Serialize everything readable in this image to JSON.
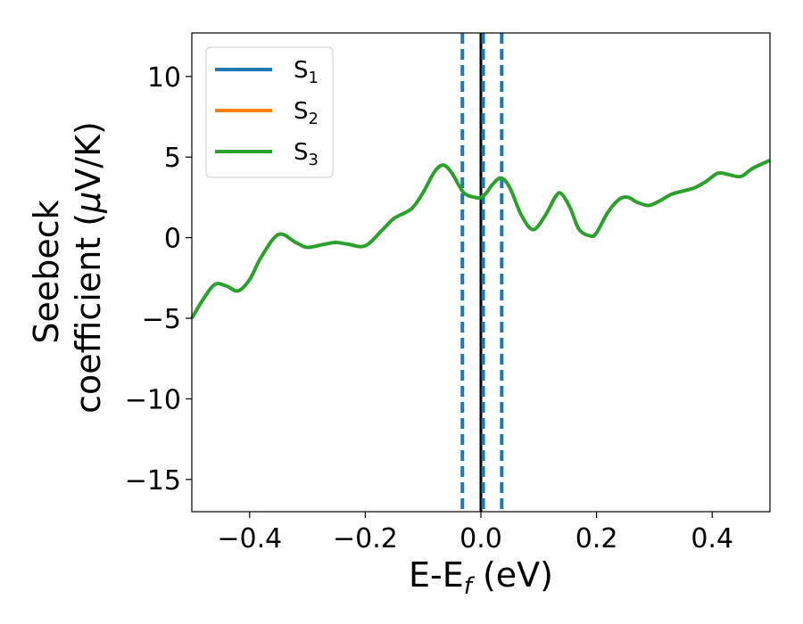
{
  "chart_data": {
    "type": "line",
    "xlabel": "E-E",
    "xlabel_sub": "f",
    "xlabel_unit": " (eV)",
    "ylabel_line1": "Seebeck",
    "ylabel_line2_pre": "coefficient  (",
    "ylabel_mu": "μ",
    "ylabel_line2_post": "V/K)",
    "xlim": [
      -0.5,
      0.5
    ],
    "ylim": [
      -17,
      12.7
    ],
    "xticks": [
      -0.4,
      -0.2,
      0.0,
      0.2,
      0.4
    ],
    "xtick_labels": [
      "−0.4",
      "−0.2",
      "0.0",
      "0.2",
      "0.4"
    ],
    "yticks": [
      10,
      5,
      0,
      -5,
      -10,
      -15
    ],
    "ytick_labels": [
      "10",
      "5",
      "0",
      "−5",
      "−10",
      "−15"
    ],
    "grid": false,
    "legend_position": "top-left",
    "series": [
      {
        "name": "S",
        "sub": "1",
        "color": "#1f77b4",
        "x": [],
        "y": []
      },
      {
        "name": "S",
        "sub": "2",
        "color": "#ff7f0e",
        "x": [],
        "y": []
      },
      {
        "name": "S",
        "sub": "3",
        "color": "#2ca02c",
        "x": [
          -0.5,
          -0.48,
          -0.46,
          -0.44,
          -0.42,
          -0.4,
          -0.38,
          -0.35,
          -0.32,
          -0.3,
          -0.27,
          -0.25,
          -0.23,
          -0.2,
          -0.17,
          -0.15,
          -0.12,
          -0.1,
          -0.08,
          -0.065,
          -0.05,
          -0.03,
          -0.01,
          0.0,
          0.01,
          0.02,
          0.035,
          0.05,
          0.07,
          0.09,
          0.11,
          0.13,
          0.14,
          0.155,
          0.17,
          0.19,
          0.2,
          0.22,
          0.24,
          0.255,
          0.27,
          0.29,
          0.31,
          0.33,
          0.35,
          0.37,
          0.39,
          0.41,
          0.43,
          0.45,
          0.47,
          0.5
        ],
        "y": [
          -5.0,
          -3.8,
          -2.9,
          -3.0,
          -3.3,
          -2.6,
          -1.2,
          0.2,
          -0.3,
          -0.6,
          -0.4,
          -0.3,
          -0.4,
          -0.5,
          0.5,
          1.2,
          1.8,
          2.8,
          4.1,
          4.5,
          4.0,
          2.8,
          2.5,
          2.5,
          2.8,
          3.3,
          3.7,
          3.1,
          1.4,
          0.5,
          1.3,
          2.6,
          2.7,
          1.8,
          0.5,
          0.1,
          0.3,
          1.6,
          2.4,
          2.5,
          2.2,
          2.0,
          2.3,
          2.7,
          2.9,
          3.1,
          3.5,
          4.0,
          3.9,
          3.8,
          4.3,
          4.8
        ]
      }
    ],
    "vlines": [
      {
        "x": -0.032,
        "color": "#1f77b4",
        "style": "dashed"
      },
      {
        "x": 0.0,
        "color": "#000000",
        "style": "solid"
      },
      {
        "x": 0.004,
        "color": "#1f77b4",
        "style": "dashed"
      },
      {
        "x": 0.036,
        "color": "#1f77b4",
        "style": "dashed"
      }
    ]
  }
}
